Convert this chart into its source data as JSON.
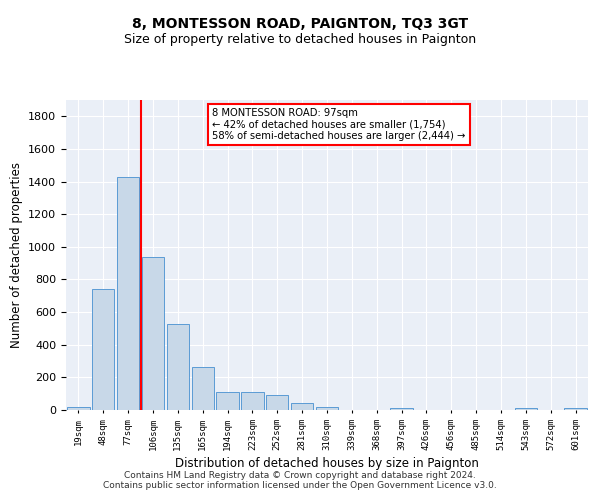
{
  "title": "8, MONTESSON ROAD, PAIGNTON, TQ3 3GT",
  "subtitle": "Size of property relative to detached houses in Paignton",
  "xlabel": "Distribution of detached houses by size in Paignton",
  "ylabel": "Number of detached properties",
  "categories": [
    "19sqm",
    "48sqm",
    "77sqm",
    "106sqm",
    "135sqm",
    "165sqm",
    "194sqm",
    "223sqm",
    "252sqm",
    "281sqm",
    "310sqm",
    "339sqm",
    "368sqm",
    "397sqm",
    "426sqm",
    "456sqm",
    "485sqm",
    "514sqm",
    "543sqm",
    "572sqm",
    "601sqm"
  ],
  "values": [
    20,
    740,
    1430,
    940,
    530,
    265,
    110,
    110,
    90,
    40,
    20,
    0,
    0,
    15,
    0,
    0,
    0,
    0,
    15,
    0,
    15
  ],
  "bar_color": "#c8d8e8",
  "bar_edge_color": "#5b9bd5",
  "vline_color": "red",
  "vline_pos": 2.5,
  "annotation_text": "8 MONTESSON ROAD: 97sqm\n← 42% of detached houses are smaller (1,754)\n58% of semi-detached houses are larger (2,444) →",
  "annotation_box_color": "white",
  "annotation_box_edge": "red",
  "ylim": [
    0,
    1900
  ],
  "yticks": [
    0,
    200,
    400,
    600,
    800,
    1000,
    1200,
    1400,
    1600,
    1800
  ],
  "bg_color": "#eaeff7",
  "footer": "Contains HM Land Registry data © Crown copyright and database right 2024.\nContains public sector information licensed under the Open Government Licence v3.0.",
  "title_fontsize": 10,
  "subtitle_fontsize": 9,
  "ylabel_fontsize": 8.5,
  "xlabel_fontsize": 8.5,
  "footer_fontsize": 6.5
}
